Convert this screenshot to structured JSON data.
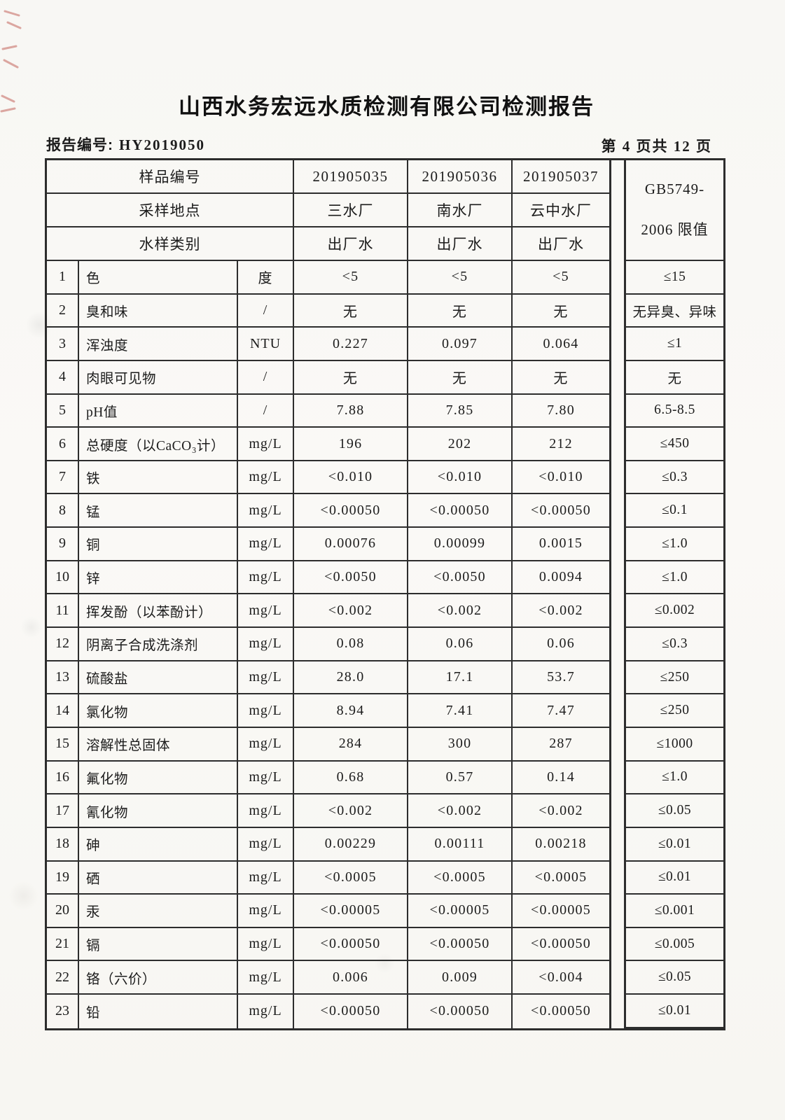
{
  "page": {
    "title": "山西水务宏远水质检测有限公司检测报告",
    "report_no_label": "报告编号:",
    "report_no_value": "HY2019050",
    "page_indicator": "第 4 页共 12 页"
  },
  "colors": {
    "paper": "#f8f7f4",
    "ink": "#1c1c1c",
    "table_line": "#2d2d2d",
    "red_artifact": "#b8453c"
  },
  "table": {
    "header": {
      "sample_no_label": "样品编号",
      "sample_ids": [
        "201905035",
        "201905036",
        "201905037"
      ],
      "location_label": "采样地点",
      "locations": [
        "三水厂",
        "南水厂",
        "云中水厂"
      ],
      "type_label": "水样类别",
      "types": [
        "出厂水",
        "出厂水",
        "出厂水"
      ],
      "limit_header_line1": "GB5749-",
      "limit_header_line2": "2006 限值"
    },
    "rows": [
      {
        "no": "1",
        "item": "色",
        "unit": "度",
        "v1": "<5",
        "v2": "<5",
        "v3": "<5",
        "limit": "≤15"
      },
      {
        "no": "2",
        "item": "臭和味",
        "unit": "/",
        "v1": "无",
        "v2": "无",
        "v3": "无",
        "limit": "无异臭、异味"
      },
      {
        "no": "3",
        "item": "浑浊度",
        "unit": "NTU",
        "v1": "0.227",
        "v2": "0.097",
        "v3": "0.064",
        "limit": "≤1"
      },
      {
        "no": "4",
        "item": "肉眼可见物",
        "unit": "/",
        "v1": "无",
        "v2": "无",
        "v3": "无",
        "limit": "无"
      },
      {
        "no": "5",
        "item": "pH值",
        "unit": "/",
        "v1": "7.88",
        "v2": "7.85",
        "v3": "7.80",
        "limit": "6.5-8.5"
      },
      {
        "no": "6",
        "item": "总硬度（以CaCO₃计）",
        "unit": "mg/L",
        "v1": "196",
        "v2": "202",
        "v3": "212",
        "limit": "≤450"
      },
      {
        "no": "7",
        "item": "铁",
        "unit": "mg/L",
        "v1": "<0.010",
        "v2": "<0.010",
        "v3": "<0.010",
        "limit": "≤0.3"
      },
      {
        "no": "8",
        "item": "锰",
        "unit": "mg/L",
        "v1": "<0.00050",
        "v2": "<0.00050",
        "v3": "<0.00050",
        "limit": "≤0.1"
      },
      {
        "no": "9",
        "item": "铜",
        "unit": "mg/L",
        "v1": "0.00076",
        "v2": "0.00099",
        "v3": "0.0015",
        "limit": "≤1.0"
      },
      {
        "no": "10",
        "item": "锌",
        "unit": "mg/L",
        "v1": "<0.0050",
        "v2": "<0.0050",
        "v3": "0.0094",
        "limit": "≤1.0"
      },
      {
        "no": "11",
        "item": "挥发酚（以苯酚计）",
        "unit": "mg/L",
        "v1": "<0.002",
        "v2": "<0.002",
        "v3": "<0.002",
        "limit": "≤0.002"
      },
      {
        "no": "12",
        "item": "阴离子合成洗涤剂",
        "unit": "mg/L",
        "v1": "0.08",
        "v2": "0.06",
        "v3": "0.06",
        "limit": "≤0.3"
      },
      {
        "no": "13",
        "item": "硫酸盐",
        "unit": "mg/L",
        "v1": "28.0",
        "v2": "17.1",
        "v3": "53.7",
        "limit": "≤250"
      },
      {
        "no": "14",
        "item": "氯化物",
        "unit": "mg/L",
        "v1": "8.94",
        "v2": "7.41",
        "v3": "7.47",
        "limit": "≤250"
      },
      {
        "no": "15",
        "item": "溶解性总固体",
        "unit": "mg/L",
        "v1": "284",
        "v2": "300",
        "v3": "287",
        "limit": "≤1000"
      },
      {
        "no": "16",
        "item": "氟化物",
        "unit": "mg/L",
        "v1": "0.68",
        "v2": "0.57",
        "v3": "0.14",
        "limit": "≤1.0"
      },
      {
        "no": "17",
        "item": "氰化物",
        "unit": "mg/L",
        "v1": "<0.002",
        "v2": "<0.002",
        "v3": "<0.002",
        "limit": "≤0.05"
      },
      {
        "no": "18",
        "item": "砷",
        "unit": "mg/L",
        "v1": "0.00229",
        "v2": "0.00111",
        "v3": "0.00218",
        "limit": "≤0.01"
      },
      {
        "no": "19",
        "item": "硒",
        "unit": "mg/L",
        "v1": "<0.0005",
        "v2": "<0.0005",
        "v3": "<0.0005",
        "limit": "≤0.01"
      },
      {
        "no": "20",
        "item": "汞",
        "unit": "mg/L",
        "v1": "<0.00005",
        "v2": "<0.00005",
        "v3": "<0.00005",
        "limit": "≤0.001"
      },
      {
        "no": "21",
        "item": "镉",
        "unit": "mg/L",
        "v1": "<0.00050",
        "v2": "<0.00050",
        "v3": "<0.00050",
        "limit": "≤0.005"
      },
      {
        "no": "22",
        "item": "铬（六价）",
        "unit": "mg/L",
        "v1": "0.006",
        "v2": "0.009",
        "v3": "<0.004",
        "limit": "≤0.05"
      },
      {
        "no": "23",
        "item": "铅",
        "unit": "mg/L",
        "v1": "<0.00050",
        "v2": "<0.00050",
        "v3": "<0.00050",
        "limit": "≤0.01"
      }
    ]
  }
}
